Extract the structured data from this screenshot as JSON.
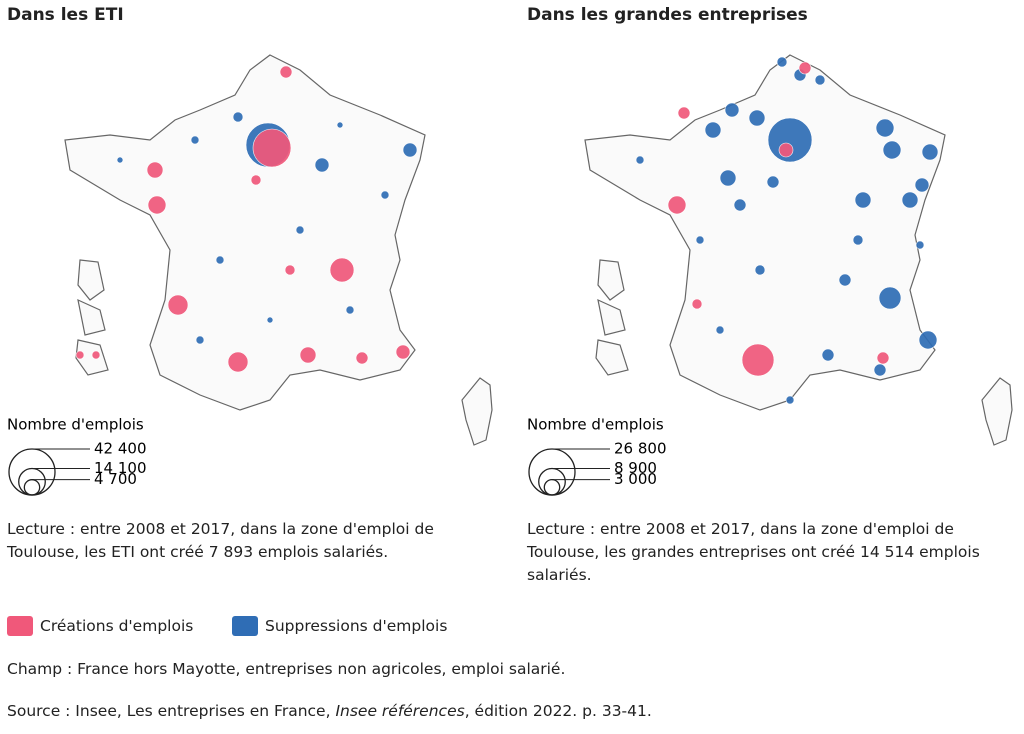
{
  "panels": [
    {
      "title": "Dans les ETI",
      "legend_title": "Nombre d'emplois",
      "legend_sizes": [
        {
          "value": 42400,
          "label": "42 400"
        },
        {
          "value": 14100,
          "label": "14 100"
        },
        {
          "value": 4700,
          "label": "4 700"
        }
      ],
      "reading": "Lecture : entre 2008 et 2017, dans la zone d'emploi de Toulouse, les ETI ont créé 7 893 emplois salariés."
    },
    {
      "title": "Dans les grandes entreprises",
      "legend_title": "Nombre d'emplois",
      "legend_sizes": [
        {
          "value": 26800,
          "label": "26 800"
        },
        {
          "value": 8900,
          "label": "8 900"
        },
        {
          "value": 3000,
          "label": "3 000"
        }
      ],
      "reading": "Lecture : entre 2008 et 2017, dans la zone d'emploi de Toulouse, les grandes entreprises ont créé 14 514 emplois salariés."
    }
  ],
  "legend": [
    {
      "label": "Créations d'emplois",
      "color": "#f0587a"
    },
    {
      "label": "Suppressions d'emplois",
      "color": "#2f6db5"
    }
  ],
  "champ": "Champ : France hors Mayotte, entreprises non agricoles, emploi salarié.",
  "source": {
    "before": "Source : Insee, Les entreprises en France, ",
    "italic": "Insee références",
    "after": ", édition 2022. p. 33-41."
  }
}
